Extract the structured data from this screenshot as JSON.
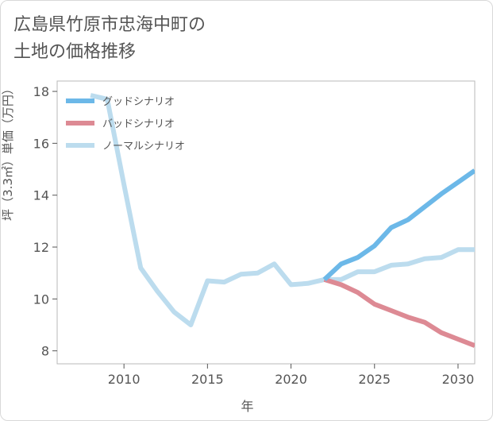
{
  "title": "広島県竹原市忠海中町の\n土地の価格推移",
  "chart_data": {
    "type": "line",
    "xlabel": "年",
    "ylabel": "坪（3.3㎡）単価（万円）",
    "xlim": [
      2006,
      2031
    ],
    "ylim": [
      7.5,
      18.4
    ],
    "xticks": [
      2010,
      2015,
      2020,
      2025,
      2030
    ],
    "yticks": [
      8,
      10,
      12,
      14,
      16,
      18
    ],
    "grid": false,
    "legend_position": "top-left",
    "series": [
      {
        "name": "グッドシナリオ",
        "color": "#6cb8e8",
        "x": [
          2022,
          2023,
          2024,
          2025,
          2026,
          2027,
          2028,
          2029,
          2030,
          2031
        ],
        "y": [
          10.75,
          11.35,
          11.6,
          12.05,
          12.75,
          13.05,
          13.55,
          14.05,
          14.5,
          14.95
        ]
      },
      {
        "name": "バッドシナリオ",
        "color": "#dd8a94",
        "x": [
          2022,
          2023,
          2024,
          2025,
          2026,
          2027,
          2028,
          2029,
          2030,
          2031
        ],
        "y": [
          10.75,
          10.55,
          10.25,
          9.8,
          9.55,
          9.3,
          9.1,
          8.7,
          8.45,
          8.2
        ]
      },
      {
        "name": "ノーマルシナリオ",
        "color": "#bcdcee",
        "x": [
          2008,
          2009,
          2010,
          2011,
          2012,
          2013,
          2014,
          2015,
          2016,
          2017,
          2018,
          2019,
          2020,
          2021,
          2022,
          2023,
          2024,
          2025,
          2026,
          2027,
          2028,
          2029,
          2030,
          2031
        ],
        "y": [
          17.85,
          17.7,
          14.4,
          11.2,
          10.3,
          9.5,
          9.0,
          10.7,
          10.65,
          10.95,
          11.0,
          11.35,
          10.55,
          10.6,
          10.75,
          10.75,
          11.05,
          11.05,
          11.3,
          11.35,
          11.55,
          11.6,
          11.9,
          11.9
        ]
      }
    ]
  }
}
